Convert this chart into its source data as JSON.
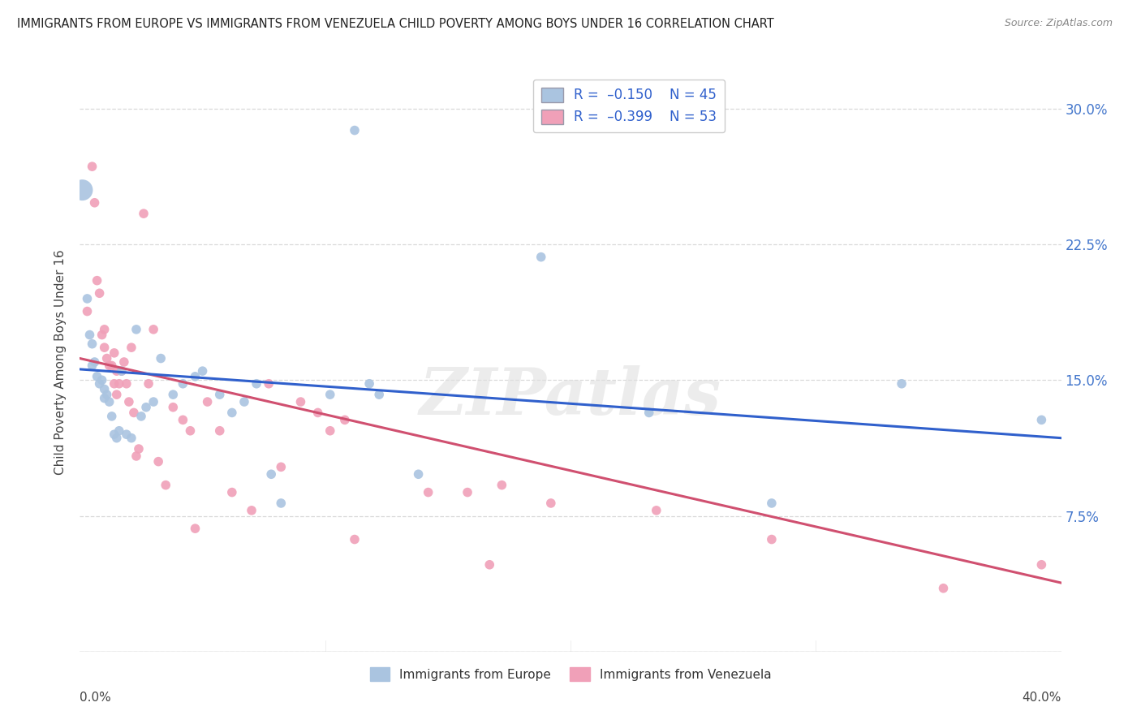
{
  "title": "IMMIGRANTS FROM EUROPE VS IMMIGRANTS FROM VENEZUELA CHILD POVERTY AMONG BOYS UNDER 16 CORRELATION CHART",
  "source": "Source: ZipAtlas.com",
  "ylabel": "Child Poverty Among Boys Under 16",
  "yticks": [
    0.0,
    0.075,
    0.15,
    0.225,
    0.3
  ],
  "ytick_labels": [
    "",
    "7.5%",
    "15.0%",
    "22.5%",
    "30.0%"
  ],
  "xlim": [
    0.0,
    0.4
  ],
  "ylim": [
    0.0,
    0.32
  ],
  "background_color": "#ffffff",
  "grid_color": "#d0d0d0",
  "watermark": "ZIPatlas",
  "europe_color": "#aac4e0",
  "venezuela_color": "#f0a0b8",
  "europe_line_color": "#3060cc",
  "venezuela_line_color": "#d05070",
  "europe_points": [
    [
      0.001,
      0.255
    ],
    [
      0.003,
      0.195
    ],
    [
      0.004,
      0.175
    ],
    [
      0.005,
      0.17
    ],
    [
      0.005,
      0.158
    ],
    [
      0.006,
      0.16
    ],
    [
      0.007,
      0.152
    ],
    [
      0.008,
      0.148
    ],
    [
      0.009,
      0.15
    ],
    [
      0.01,
      0.145
    ],
    [
      0.01,
      0.14
    ],
    [
      0.011,
      0.142
    ],
    [
      0.012,
      0.138
    ],
    [
      0.013,
      0.13
    ],
    [
      0.014,
      0.12
    ],
    [
      0.015,
      0.118
    ],
    [
      0.016,
      0.122
    ],
    [
      0.017,
      0.155
    ],
    [
      0.019,
      0.12
    ],
    [
      0.021,
      0.118
    ],
    [
      0.023,
      0.178
    ],
    [
      0.025,
      0.13
    ],
    [
      0.027,
      0.135
    ],
    [
      0.03,
      0.138
    ],
    [
      0.033,
      0.162
    ],
    [
      0.038,
      0.142
    ],
    [
      0.042,
      0.148
    ],
    [
      0.047,
      0.152
    ],
    [
      0.05,
      0.155
    ],
    [
      0.057,
      0.142
    ],
    [
      0.062,
      0.132
    ],
    [
      0.067,
      0.138
    ],
    [
      0.072,
      0.148
    ],
    [
      0.078,
      0.098
    ],
    [
      0.082,
      0.082
    ],
    [
      0.102,
      0.142
    ],
    [
      0.112,
      0.288
    ],
    [
      0.118,
      0.148
    ],
    [
      0.122,
      0.142
    ],
    [
      0.138,
      0.098
    ],
    [
      0.188,
      0.218
    ],
    [
      0.232,
      0.132
    ],
    [
      0.282,
      0.082
    ],
    [
      0.335,
      0.148
    ],
    [
      0.392,
      0.128
    ]
  ],
  "venezuela_points": [
    [
      0.003,
      0.188
    ],
    [
      0.005,
      0.268
    ],
    [
      0.006,
      0.248
    ],
    [
      0.007,
      0.205
    ],
    [
      0.008,
      0.198
    ],
    [
      0.009,
      0.175
    ],
    [
      0.01,
      0.178
    ],
    [
      0.01,
      0.168
    ],
    [
      0.011,
      0.162
    ],
    [
      0.012,
      0.158
    ],
    [
      0.013,
      0.158
    ],
    [
      0.014,
      0.165
    ],
    [
      0.014,
      0.148
    ],
    [
      0.015,
      0.155
    ],
    [
      0.015,
      0.142
    ],
    [
      0.016,
      0.148
    ],
    [
      0.017,
      0.155
    ],
    [
      0.018,
      0.16
    ],
    [
      0.019,
      0.148
    ],
    [
      0.02,
      0.138
    ],
    [
      0.021,
      0.168
    ],
    [
      0.022,
      0.132
    ],
    [
      0.023,
      0.108
    ],
    [
      0.024,
      0.112
    ],
    [
      0.026,
      0.242
    ],
    [
      0.028,
      0.148
    ],
    [
      0.03,
      0.178
    ],
    [
      0.032,
      0.105
    ],
    [
      0.035,
      0.092
    ],
    [
      0.038,
      0.135
    ],
    [
      0.042,
      0.128
    ],
    [
      0.045,
      0.122
    ],
    [
      0.047,
      0.068
    ],
    [
      0.052,
      0.138
    ],
    [
      0.057,
      0.122
    ],
    [
      0.062,
      0.088
    ],
    [
      0.07,
      0.078
    ],
    [
      0.077,
      0.148
    ],
    [
      0.082,
      0.102
    ],
    [
      0.09,
      0.138
    ],
    [
      0.097,
      0.132
    ],
    [
      0.102,
      0.122
    ],
    [
      0.108,
      0.128
    ],
    [
      0.112,
      0.062
    ],
    [
      0.142,
      0.088
    ],
    [
      0.158,
      0.088
    ],
    [
      0.167,
      0.048
    ],
    [
      0.172,
      0.092
    ],
    [
      0.192,
      0.082
    ],
    [
      0.235,
      0.078
    ],
    [
      0.282,
      0.062
    ],
    [
      0.392,
      0.048
    ],
    [
      0.352,
      0.035
    ]
  ],
  "europe_large_point_idx": 0,
  "europe_large_point_size": 350,
  "default_point_size": 70
}
